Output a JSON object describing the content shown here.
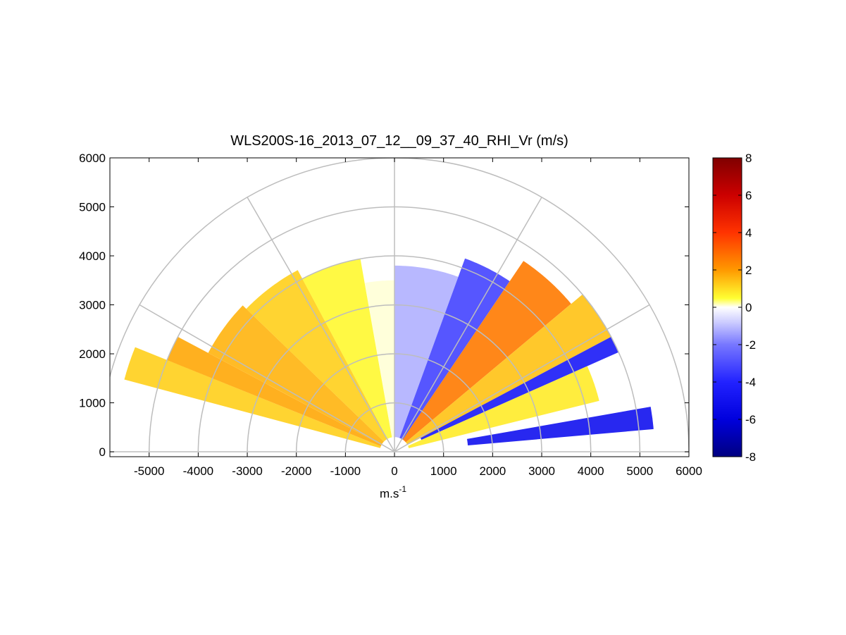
{
  "chart_data": {
    "type": "heatmap",
    "subtype": "polar-rhi-sector",
    "title": "WLS200S-16_2013_07_12__09_37_40_RHI_Vr (m/s)",
    "xlabel_base": "m.s",
    "xlabel_exp": "-1",
    "ylabel": "",
    "xlim": [
      -5800,
      6000
    ],
    "ylim": [
      -100,
      6000
    ],
    "x_ticks": [
      -5000,
      -4000,
      -3000,
      -2000,
      -1000,
      0,
      1000,
      2000,
      3000,
      4000,
      5000,
      6000
    ],
    "y_ticks": [
      0,
      1000,
      2000,
      3000,
      4000,
      5000,
      6000
    ],
    "polar_grid": {
      "ring_radii": [
        1000,
        2000,
        3000,
        4000,
        5000,
        6000
      ],
      "spoke_angles_deg": [
        0,
        30,
        60,
        90,
        120,
        150,
        180
      ]
    },
    "colorbar": {
      "range": [
        -8,
        8
      ],
      "ticks": [
        8,
        6,
        4,
        2,
        0,
        -2,
        -4,
        -6,
        -8
      ],
      "colormap": "blue-white-yellow-red"
    },
    "sectors": [
      {
        "angle_start": 158,
        "angle_end": 165,
        "r_start": 300,
        "r_end": 5700,
        "vr": 1.2
      },
      {
        "angle_start": 152,
        "angle_end": 158,
        "r_start": 300,
        "r_end": 5000,
        "vr": 1.8
      },
      {
        "angle_start": 136,
        "angle_end": 152,
        "r_start": 300,
        "r_end": 4300,
        "vr": 1.6
      },
      {
        "angle_start": 118,
        "angle_end": 136,
        "r_start": 300,
        "r_end": 4200,
        "vr": 1.2
      },
      {
        "angle_start": 100,
        "angle_end": 118,
        "r_start": 300,
        "r_end": 4000,
        "vr": 0.6
      },
      {
        "angle_start": 90,
        "angle_end": 100,
        "r_start": 300,
        "r_end": 3500,
        "vr": 0.1
      },
      {
        "angle_start": 70,
        "angle_end": 90,
        "r_start": 300,
        "r_end": 3800,
        "vr": -1.2
      },
      {
        "angle_start": 56,
        "angle_end": 70,
        "r_start": 300,
        "r_end": 4200,
        "vr": -3.2
      },
      {
        "angle_start": 40,
        "angle_end": 56,
        "r_start": 300,
        "r_end": 4700,
        "vr": 2.6
      },
      {
        "angle_start": 28,
        "angle_end": 40,
        "r_start": 300,
        "r_end": 5000,
        "vr": 1.4
      },
      {
        "angle_start": 24,
        "angle_end": 28,
        "r_start": 600,
        "r_end": 5000,
        "vr": -4.5
      },
      {
        "angle_start": 14,
        "angle_end": 24,
        "r_start": 300,
        "r_end": 4300,
        "vr": 0.8
      },
      {
        "angle_start": 5,
        "angle_end": 10,
        "r_start": 1500,
        "r_end": 5300,
        "vr": -5.0
      }
    ]
  }
}
